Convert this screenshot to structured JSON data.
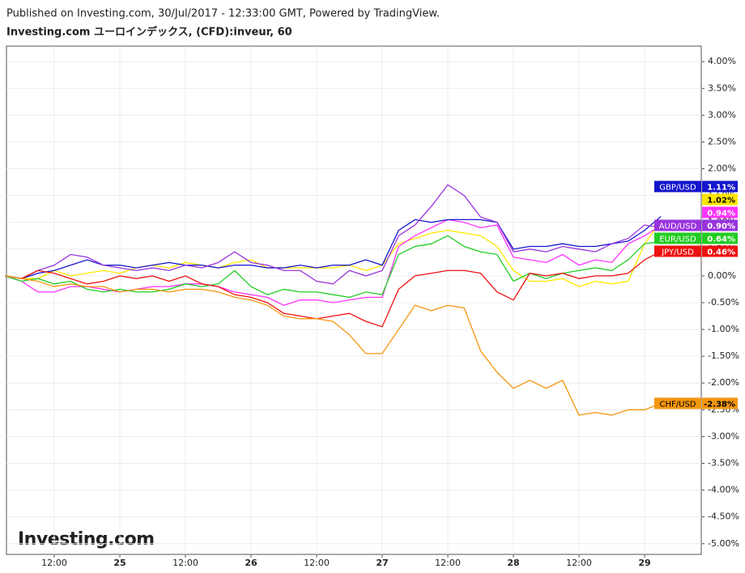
{
  "chart_data": {
    "type": "line",
    "subtitle": "Published on Investing.com, 30/Jul/2017 - 12:33:00 GMT, Powered by TradingView.",
    "title": "Investing.com ユーロインデックス, (CFD):inveur, 60",
    "watermark": "Investing.com",
    "categories": [
      null,
      null,
      null,
      "12:00",
      null,
      null,
      null,
      "25",
      null,
      null,
      null,
      "12:00",
      null,
      null,
      null,
      "26",
      null,
      null,
      null,
      "12:00",
      null,
      null,
      null,
      "27",
      null,
      null,
      null,
      "12:00",
      null,
      null,
      null,
      "28",
      null,
      null,
      null,
      "12:00",
      null,
      null,
      null,
      "29",
      null,
      null,
      null
    ],
    "ylim": [
      -5.2,
      4.29
    ],
    "yticks": [
      {
        "value": 4,
        "label": "4.00%"
      },
      {
        "value": 3.5,
        "label": "3.50%"
      },
      {
        "value": 3,
        "label": "3.00%"
      },
      {
        "value": 2.5,
        "label": "2.50%"
      },
      {
        "value": 2,
        "label": "2.00%"
      },
      {
        "value": 1.5,
        "label": "1.50%"
      },
      {
        "value": 1,
        "label": "1.00%"
      },
      {
        "value": 0.5,
        "label": "0.50%"
      },
      {
        "value": 0,
        "label": "0.00%"
      },
      {
        "value": -0.5,
        "label": "-0.50%"
      },
      {
        "value": -1,
        "label": "-1.00%"
      },
      {
        "value": -1.5,
        "label": "-1.50%"
      },
      {
        "value": -2,
        "label": "-2.00%"
      },
      {
        "value": -2.5,
        "label": "-2.50%"
      },
      {
        "value": -3,
        "label": "-3.00%"
      },
      {
        "value": -3.5,
        "label": "-3.50%"
      },
      {
        "value": -4,
        "label": "-4.00%"
      },
      {
        "value": -4.5,
        "label": "-4.50%"
      },
      {
        "value": -5,
        "label": "-5.00%"
      }
    ],
    "grid": true,
    "series": [
      {
        "color": "#ffe600",
        "values": [
          0,
          -0.05,
          -0.05,
          0.1,
          0.0,
          0.05,
          0.1,
          0.05,
          0.15,
          0.2,
          0.15,
          0.25,
          0.2,
          0.15,
          0.25,
          0.3,
          0.15,
          0.15,
          0.15,
          0.15,
          0.15,
          0.2,
          0.1,
          0.2,
          0.6,
          0.7,
          0.8,
          0.85,
          0.8,
          0.75,
          0.55,
          0.1,
          -0.1,
          -0.1,
          -0.05,
          -0.2,
          -0.1,
          -0.15,
          -0.1,
          0.6,
          1.02,
          null,
          null
        ],
        "value_labels": [
          null,
          null,
          null,
          null,
          null,
          null,
          null,
          null,
          null,
          null,
          null,
          null,
          null,
          null,
          null,
          null,
          null,
          null,
          null,
          null,
          null,
          null,
          null,
          null,
          null,
          null,
          null,
          null,
          null,
          null,
          null,
          null,
          null,
          null,
          null,
          null,
          null,
          null,
          null,
          null,
          "1.02%",
          null,
          null
        ]
      },
      {
        "color": "#ff33ff",
        "values": [
          0,
          -0.1,
          -0.3,
          -0.3,
          -0.2,
          -0.2,
          -0.25,
          -0.3,
          -0.25,
          -0.2,
          -0.2,
          -0.15,
          -0.15,
          -0.2,
          -0.3,
          -0.35,
          -0.4,
          -0.55,
          -0.45,
          -0.45,
          -0.5,
          -0.45,
          -0.4,
          -0.4,
          0.55,
          0.75,
          0.9,
          1.05,
          1.0,
          0.9,
          0.95,
          0.35,
          0.3,
          0.25,
          0.4,
          0.2,
          0.3,
          0.25,
          0.6,
          0.75,
          0.94,
          null,
          null
        ],
        "value_labels": [
          null,
          null,
          null,
          null,
          null,
          null,
          null,
          null,
          null,
          null,
          null,
          null,
          null,
          null,
          null,
          null,
          null,
          null,
          null,
          null,
          null,
          null,
          null,
          null,
          null,
          null,
          null,
          null,
          null,
          null,
          null,
          null,
          null,
          null,
          null,
          null,
          null,
          null,
          null,
          null,
          "0.94%",
          null,
          null
        ]
      },
      {
        "name": "GBP/USD",
        "color": "#1414cc",
        "values": [
          0,
          -0.05,
          0.05,
          0.1,
          0.2,
          0.3,
          0.2,
          0.2,
          0.15,
          0.2,
          0.25,
          0.2,
          0.2,
          0.15,
          0.2,
          0.2,
          0.15,
          0.15,
          0.2,
          0.15,
          0.2,
          0.2,
          0.3,
          0.2,
          0.85,
          1.05,
          1.0,
          1.05,
          1.05,
          1.05,
          1.0,
          0.5,
          0.55,
          0.55,
          0.6,
          0.55,
          0.55,
          0.6,
          0.65,
          0.85,
          1.11,
          null,
          null
        ],
        "value_labels": [
          null,
          null,
          null,
          null,
          null,
          null,
          null,
          null,
          null,
          null,
          null,
          null,
          null,
          null,
          null,
          null,
          null,
          null,
          null,
          null,
          null,
          null,
          null,
          null,
          null,
          null,
          null,
          null,
          null,
          null,
          null,
          null,
          null,
          null,
          null,
          null,
          null,
          null,
          null,
          null,
          "1.11%",
          null,
          null
        ]
      },
      {
        "name": "AUD/USD",
        "color": "#9933dd",
        "values": [
          0,
          -0.05,
          0.1,
          0.2,
          0.4,
          0.35,
          0.2,
          0.15,
          0.1,
          0.15,
          0.1,
          0.2,
          0.15,
          0.25,
          0.45,
          0.25,
          0.2,
          0.1,
          0.1,
          -0.1,
          -0.15,
          0.1,
          0.0,
          0.1,
          0.75,
          0.95,
          1.3,
          1.7,
          1.5,
          1.1,
          1.0,
          0.45,
          0.5,
          0.45,
          0.55,
          0.5,
          0.45,
          0.6,
          0.7,
          0.95,
          0.9,
          null,
          null
        ],
        "value_labels": [
          null,
          null,
          null,
          null,
          null,
          null,
          null,
          null,
          null,
          null,
          null,
          null,
          null,
          null,
          null,
          null,
          null,
          null,
          null,
          null,
          null,
          null,
          null,
          null,
          null,
          null,
          null,
          null,
          null,
          null,
          null,
          null,
          null,
          null,
          null,
          null,
          null,
          null,
          null,
          null,
          "0.90%",
          null,
          null
        ]
      },
      {
        "name": "EUR/USD",
        "color": "#22cc22",
        "values": [
          0,
          -0.1,
          -0.05,
          -0.15,
          -0.1,
          -0.25,
          -0.3,
          -0.25,
          -0.3,
          -0.3,
          -0.25,
          -0.15,
          -0.2,
          -0.15,
          0.1,
          -0.2,
          -0.35,
          -0.25,
          -0.3,
          -0.3,
          -0.35,
          -0.4,
          -0.3,
          -0.35,
          0.4,
          0.55,
          0.6,
          0.75,
          0.55,
          0.45,
          0.4,
          -0.1,
          0.05,
          -0.05,
          0.05,
          0.1,
          0.15,
          0.1,
          0.3,
          0.6,
          0.64,
          null,
          null
        ],
        "value_labels": [
          null,
          null,
          null,
          null,
          null,
          null,
          null,
          null,
          null,
          null,
          null,
          null,
          null,
          null,
          null,
          null,
          null,
          null,
          null,
          null,
          null,
          null,
          null,
          null,
          null,
          null,
          null,
          null,
          null,
          null,
          null,
          null,
          null,
          null,
          null,
          null,
          null,
          null,
          null,
          null,
          "0.64%",
          null,
          null
        ]
      },
      {
        "name": "JPY/USD",
        "color": "#ee1111",
        "values": [
          0,
          -0.05,
          0.1,
          0.05,
          -0.05,
          -0.15,
          -0.1,
          0.0,
          -0.05,
          0.0,
          -0.1,
          0.0,
          -0.15,
          -0.2,
          -0.35,
          -0.4,
          -0.5,
          -0.7,
          -0.75,
          -0.8,
          -0.75,
          -0.7,
          -0.85,
          -0.95,
          -0.25,
          0.0,
          0.05,
          0.1,
          0.1,
          0.05,
          -0.3,
          -0.45,
          0.05,
          0.0,
          0.05,
          -0.05,
          0.0,
          0.0,
          0.05,
          0.3,
          0.46,
          null,
          null
        ],
        "value_labels": [
          null,
          null,
          null,
          null,
          null,
          null,
          null,
          null,
          null,
          null,
          null,
          null,
          null,
          null,
          null,
          null,
          null,
          null,
          null,
          null,
          null,
          null,
          null,
          null,
          null,
          null,
          null,
          null,
          null,
          null,
          null,
          null,
          null,
          null,
          null,
          null,
          null,
          null,
          null,
          null,
          "0.46%",
          null,
          null
        ]
      },
      {
        "name": "CHF/USD",
        "color": "#f5960f",
        "values": [
          0,
          -0.05,
          -0.1,
          -0.2,
          -0.15,
          -0.2,
          -0.2,
          -0.3,
          -0.25,
          -0.25,
          -0.3,
          -0.25,
          -0.25,
          -0.3,
          -0.4,
          -0.45,
          -0.55,
          -0.75,
          -0.8,
          -0.8,
          -0.85,
          -1.1,
          -1.45,
          -1.45,
          -1.0,
          -0.55,
          -0.65,
          -0.55,
          -0.6,
          -1.4,
          -1.8,
          -2.1,
          -1.95,
          -2.1,
          -1.95,
          -2.6,
          -2.55,
          -2.6,
          -2.5,
          -2.5,
          -2.38,
          null,
          null
        ],
        "value_labels": [
          null,
          null,
          null,
          null,
          null,
          null,
          null,
          null,
          null,
          null,
          null,
          null,
          null,
          null,
          null,
          null,
          null,
          null,
          null,
          null,
          null,
          null,
          null,
          null,
          null,
          null,
          null,
          null,
          null,
          null,
          null,
          null,
          null,
          null,
          null,
          null,
          null,
          null,
          null,
          null,
          "-2.38%",
          null,
          null
        ]
      }
    ]
  }
}
